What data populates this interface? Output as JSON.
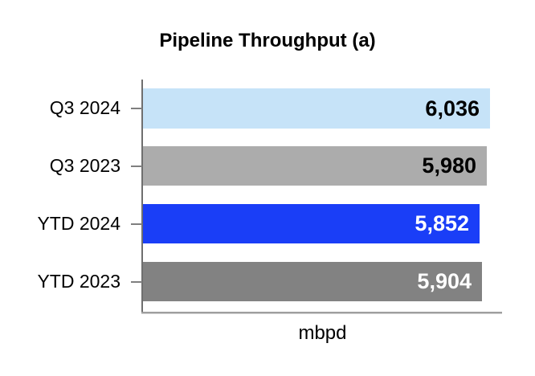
{
  "chart_data": {
    "type": "bar",
    "orientation": "horizontal",
    "title": "Pipeline Throughput (a)",
    "xlabel": "mbpd",
    "ylabel": "",
    "categories": [
      "Q3 2024",
      "Q3 2023",
      "YTD 2024",
      "YTD 2023"
    ],
    "values": [
      6036,
      5980,
      5852,
      5904
    ],
    "value_labels": [
      "6,036",
      "5,980",
      "5,852",
      "5,904"
    ],
    "bar_colors": [
      "#C6E3F8",
      "#ACACAC",
      "#1A3EF7",
      "#828282"
    ],
    "value_label_colors": [
      "#000000",
      "#000000",
      "#FFFFFF",
      "#FFFFFF"
    ],
    "xlim": [
      0,
      6250
    ],
    "grid": false,
    "legend": null,
    "axis_color": "#7f7f7f",
    "title_color": "#000000"
  }
}
